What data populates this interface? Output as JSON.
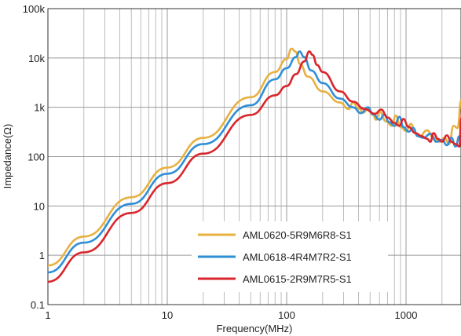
{
  "chart_data": {
    "type": "line",
    "title": "",
    "xlabel": "Frequency(MHz)",
    "ylabel": "Impedance(Ω)",
    "x_scale": "log",
    "y_scale": "log",
    "xlim": [
      1,
      3000
    ],
    "ylim": [
      0.1,
      100000
    ],
    "grid": true,
    "legend_position": "bottom-center",
    "x_ticks": [
      {
        "value": 1,
        "label": "1"
      },
      {
        "value": 10,
        "label": "10"
      },
      {
        "value": 100,
        "label": "100"
      },
      {
        "value": 1000,
        "label": "1000"
      }
    ],
    "y_ticks": [
      {
        "value": 0.1,
        "label": "0.1"
      },
      {
        "value": 1,
        "label": "1"
      },
      {
        "value": 10,
        "label": "10"
      },
      {
        "value": 100,
        "label": "100"
      },
      {
        "value": 1000,
        "label": "1k"
      },
      {
        "value": 10000,
        "label": "10k"
      },
      {
        "value": 100000,
        "label": "100k"
      }
    ],
    "series": [
      {
        "name": "AML0620-5R9M6R8-S1",
        "color": "#e8b040",
        "points": [
          [
            1,
            0.62
          ],
          [
            2,
            2.4
          ],
          [
            5,
            15
          ],
          [
            10,
            60
          ],
          [
            20,
            240
          ],
          [
            50,
            1600
          ],
          [
            80,
            5200
          ],
          [
            100,
            9500
          ],
          [
            110,
            15500
          ],
          [
            118,
            13500
          ],
          [
            130,
            7500
          ],
          [
            150,
            4200
          ],
          [
            200,
            2100
          ],
          [
            280,
            1250
          ],
          [
            330,
            920
          ],
          [
            360,
            1250
          ],
          [
            400,
            950
          ],
          [
            440,
            780
          ],
          [
            480,
            950
          ],
          [
            530,
            700
          ],
          [
            560,
            560
          ],
          [
            600,
            820
          ],
          [
            680,
            520
          ],
          [
            760,
            420
          ],
          [
            820,
            680
          ],
          [
            900,
            400
          ],
          [
            1000,
            330
          ],
          [
            1100,
            460
          ],
          [
            1200,
            300
          ],
          [
            1300,
            260
          ],
          [
            1500,
            340
          ],
          [
            1700,
            240
          ],
          [
            1900,
            200
          ],
          [
            2100,
            240
          ],
          [
            2300,
            180
          ],
          [
            2500,
            420
          ],
          [
            2700,
            380
          ],
          [
            2900,
            1400
          ]
        ]
      },
      {
        "name": "AML0618-4R4M7R2-S1",
        "color": "#2f8fd6",
        "points": [
          [
            1,
            0.45
          ],
          [
            2,
            1.8
          ],
          [
            5,
            11
          ],
          [
            10,
            45
          ],
          [
            20,
            180
          ],
          [
            50,
            1100
          ],
          [
            80,
            3700
          ],
          [
            100,
            6200
          ],
          [
            120,
            10500
          ],
          [
            128,
            13500
          ],
          [
            140,
            10500
          ],
          [
            160,
            5600
          ],
          [
            200,
            3100
          ],
          [
            280,
            1500
          ],
          [
            360,
            1000
          ],
          [
            420,
            760
          ],
          [
            480,
            1000
          ],
          [
            530,
            720
          ],
          [
            600,
            560
          ],
          [
            660,
            720
          ],
          [
            720,
            500
          ],
          [
            800,
            420
          ],
          [
            880,
            640
          ],
          [
            950,
            400
          ],
          [
            1050,
            320
          ],
          [
            1150,
            380
          ],
          [
            1250,
            260
          ],
          [
            1400,
            240
          ],
          [
            1600,
            290
          ],
          [
            1800,
            200
          ],
          [
            2000,
            220
          ],
          [
            2200,
            170
          ],
          [
            2400,
            240
          ],
          [
            2600,
            160
          ],
          [
            2800,
            260
          ],
          [
            2950,
            200
          ]
        ]
      },
      {
        "name": "AML0615-2R9M7R5-S1",
        "color": "#d8262c",
        "points": [
          [
            1,
            0.29
          ],
          [
            2,
            1.15
          ],
          [
            5,
            7.2
          ],
          [
            10,
            29
          ],
          [
            20,
            115
          ],
          [
            50,
            700
          ],
          [
            80,
            1750
          ],
          [
            100,
            2700
          ],
          [
            120,
            4700
          ],
          [
            140,
            8500
          ],
          [
            155,
            13500
          ],
          [
            165,
            11500
          ],
          [
            180,
            7200
          ],
          [
            200,
            5200
          ],
          [
            280,
            2100
          ],
          [
            360,
            1300
          ],
          [
            450,
            920
          ],
          [
            550,
            740
          ],
          [
            620,
            900
          ],
          [
            700,
            620
          ],
          [
            800,
            480
          ],
          [
            880,
            420
          ],
          [
            950,
            580
          ],
          [
            1050,
            400
          ],
          [
            1200,
            300
          ],
          [
            1350,
            260
          ],
          [
            1500,
            230
          ],
          [
            1600,
            200
          ],
          [
            1700,
            300
          ],
          [
            1850,
            230
          ],
          [
            2000,
            200
          ],
          [
            2200,
            270
          ],
          [
            2400,
            200
          ],
          [
            2600,
            180
          ],
          [
            2800,
            160
          ],
          [
            2900,
            600
          ],
          [
            3000,
            1500
          ]
        ]
      }
    ]
  }
}
